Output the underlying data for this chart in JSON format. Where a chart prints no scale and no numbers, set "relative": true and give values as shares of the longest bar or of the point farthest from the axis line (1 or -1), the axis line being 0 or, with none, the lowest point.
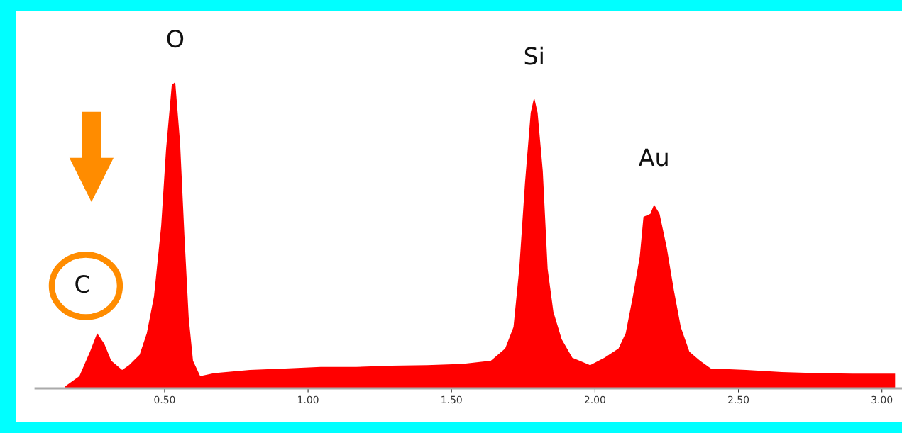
{
  "chart_data": {
    "type": "area",
    "relative": true,
    "color": "#ff0000",
    "x": [
      0.154,
      0.203,
      0.24,
      0.265,
      0.29,
      0.314,
      0.352,
      0.376,
      0.413,
      0.438,
      0.463,
      0.488,
      0.505,
      0.525,
      0.537,
      0.554,
      0.569,
      0.584,
      0.599,
      0.624,
      0.673,
      0.797,
      0.92,
      1.044,
      1.168,
      1.291,
      1.415,
      1.538,
      1.637,
      1.687,
      1.716,
      1.736,
      1.756,
      1.776,
      1.788,
      1.8,
      1.818,
      1.835,
      1.855,
      1.884,
      1.921,
      1.983,
      2.033,
      2.082,
      2.107,
      2.132,
      2.156,
      2.169,
      2.193,
      2.206,
      2.225,
      2.25,
      2.275,
      2.299,
      2.329,
      2.366,
      2.404,
      2.527,
      2.651,
      2.774,
      2.898,
      3.046
    ],
    "values": [
      0.007,
      0.04,
      0.12,
      0.18,
      0.145,
      0.09,
      0.06,
      0.076,
      0.11,
      0.18,
      0.3,
      0.53,
      0.78,
      0.99,
      1.0,
      0.8,
      0.5,
      0.23,
      0.09,
      0.04,
      0.05,
      0.06,
      0.065,
      0.07,
      0.07,
      0.074,
      0.076,
      0.08,
      0.09,
      0.13,
      0.2,
      0.39,
      0.67,
      0.9,
      0.95,
      0.9,
      0.71,
      0.39,
      0.25,
      0.16,
      0.1,
      0.076,
      0.1,
      0.13,
      0.18,
      0.3,
      0.43,
      0.56,
      0.57,
      0.6,
      0.57,
      0.46,
      0.32,
      0.2,
      0.12,
      0.09,
      0.065,
      0.06,
      0.053,
      0.05,
      0.048,
      0.048
    ],
    "xlim": [
      0.05,
      3.07
    ],
    "xticks": [
      {
        "value": 0.5,
        "label": "0.50"
      },
      {
        "value": 1.0,
        "label": "1.00"
      },
      {
        "value": 1.5,
        "label": "1.50"
      },
      {
        "value": 2.0,
        "label": "2.00"
      },
      {
        "value": 2.5,
        "label": "2.50"
      },
      {
        "value": 3.0,
        "label": "3.00"
      }
    ],
    "tick_labels": "x",
    "annotations": [
      {
        "text": "C",
        "x": 0.265,
        "y": 0.18
      },
      {
        "text": "O",
        "x": 0.537,
        "y": 1.0
      },
      {
        "text": "Si",
        "x": 1.788,
        "y": 0.95
      },
      {
        "text": "Au",
        "x": 2.206,
        "y": 0.6
      }
    ]
  }
}
